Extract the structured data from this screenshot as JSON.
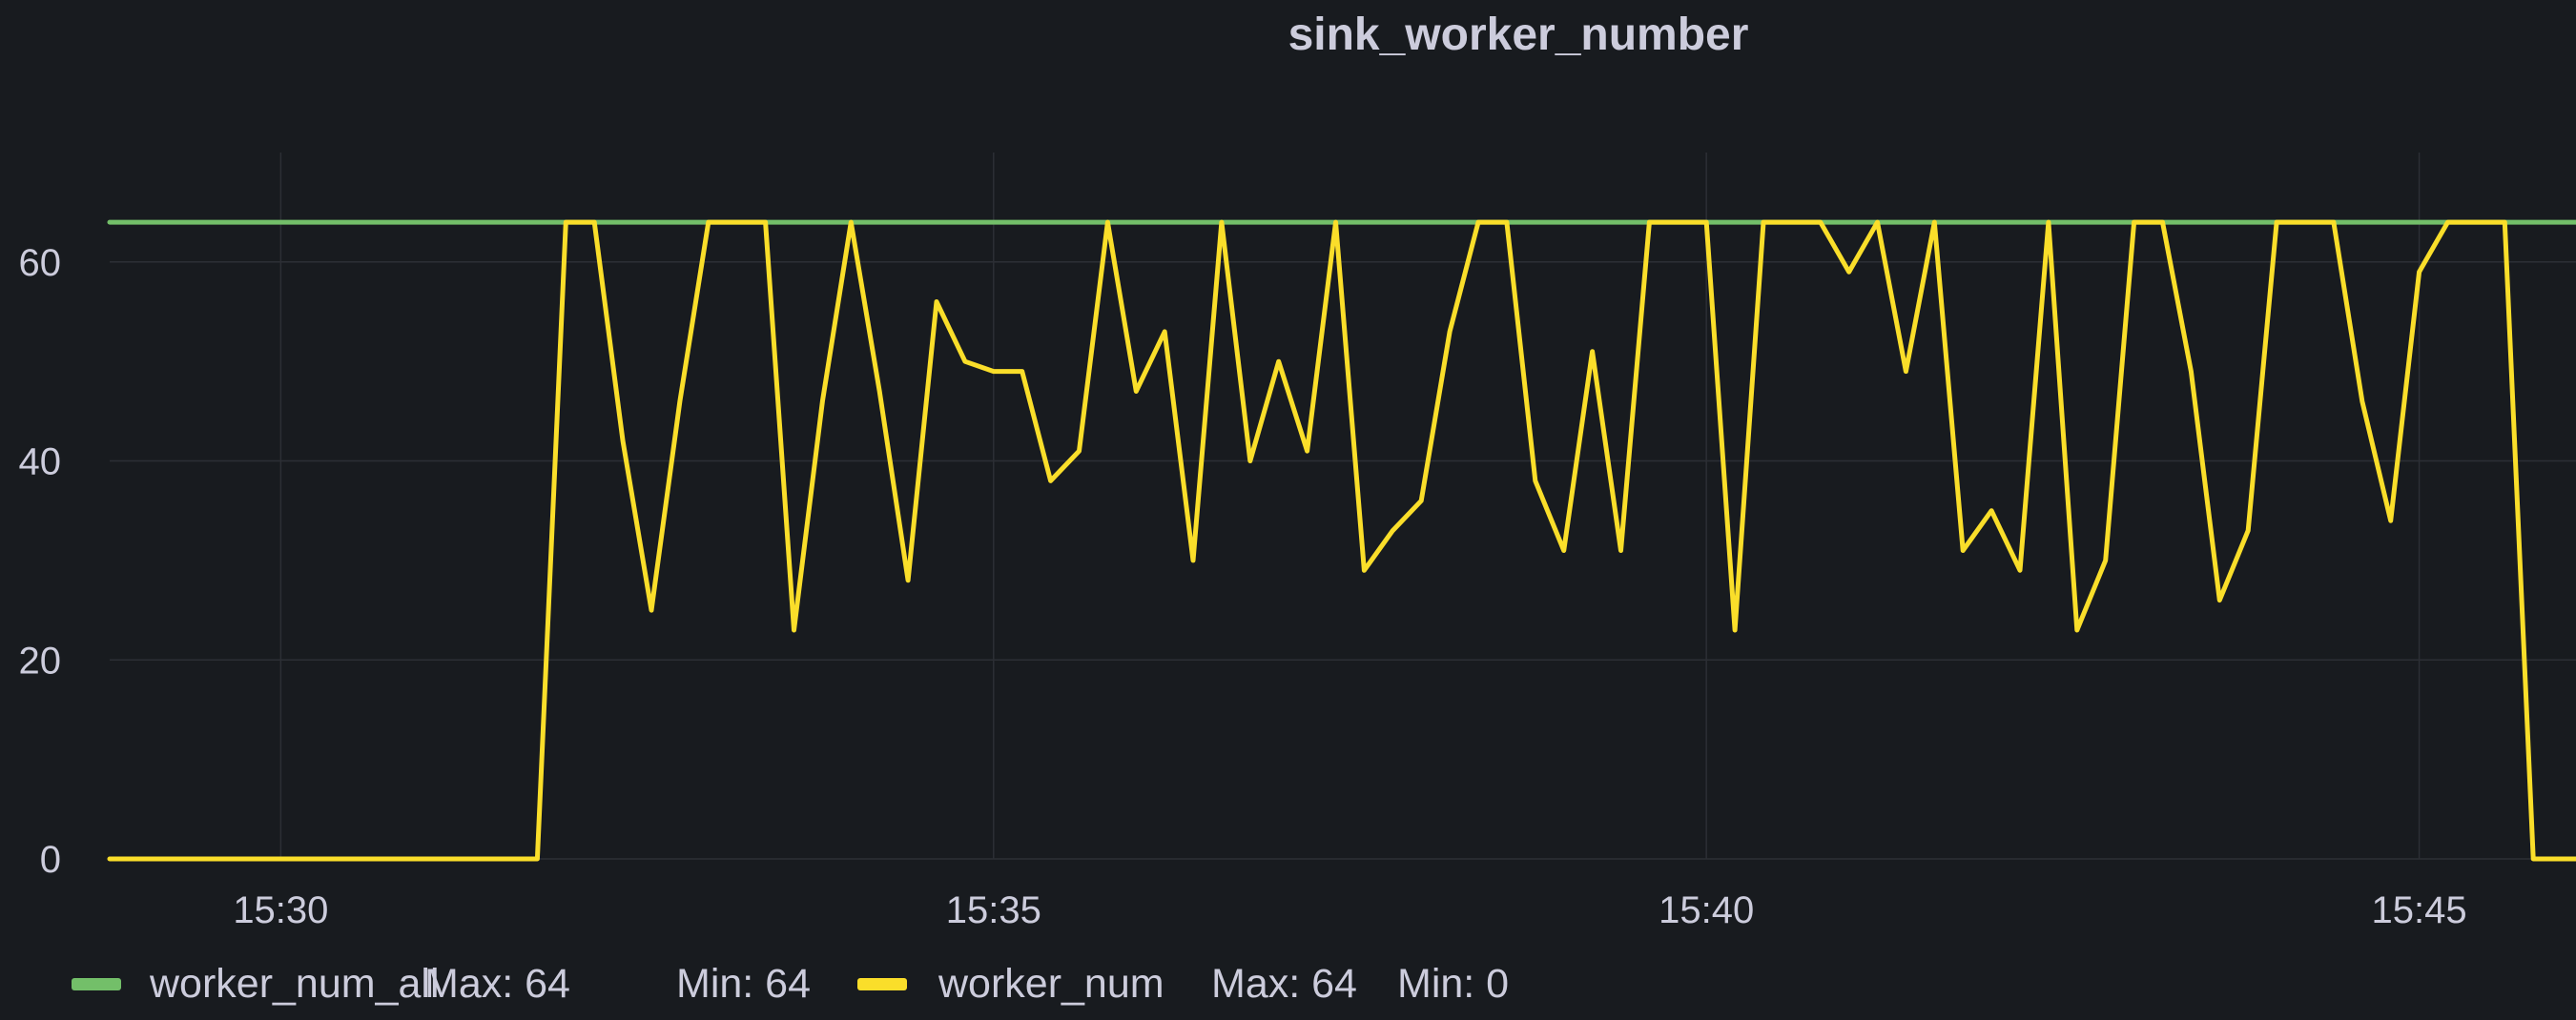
{
  "panel": {
    "title": "sink_worker_number"
  },
  "colors": {
    "background": "#181b1f",
    "grid": "#2c2f35",
    "text": "#ccccdc",
    "worker_num_all": "#73bf69",
    "worker_num": "#fade2a"
  },
  "legend": [
    {
      "name": "worker_num_all",
      "max_text": "Max: 64",
      "min_text": "Min: 64",
      "color": "#73bf69"
    },
    {
      "name": "worker_num",
      "max_text": "Max: 64",
      "min_text": "Min: 0",
      "color": "#fade2a"
    }
  ],
  "chart_data": {
    "type": "line",
    "title": "sink_worker_number",
    "xlabel": "",
    "ylabel": "",
    "x_unit": "minutes",
    "x_tick_labels": [
      "15:30",
      "15:35",
      "15:40",
      "15:45"
    ],
    "x_tick_values": [
      30,
      35,
      40,
      45
    ],
    "xlim": [
      28.8,
      46.1
    ],
    "y_tick_labels": [
      "0",
      "20",
      "40",
      "60"
    ],
    "y_tick_values": [
      0,
      20,
      40,
      60
    ],
    "ylim": [
      0,
      71
    ],
    "grid": true,
    "legend_position": "bottom-left",
    "series": [
      {
        "name": "worker_num_all",
        "color": "#73bf69",
        "x": [
          28.8,
          46.1
        ],
        "y": [
          64,
          64
        ]
      },
      {
        "name": "worker_num",
        "color": "#fade2a",
        "x": [
          28.8,
          31.8,
          32.0,
          32.2,
          32.4,
          32.6,
          32.8,
          33.0,
          33.2,
          33.4,
          33.6,
          33.8,
          34.0,
          34.2,
          34.4,
          34.6,
          34.8,
          35.0,
          35.2,
          35.4,
          35.6,
          35.8,
          36.0,
          36.2,
          36.4,
          36.6,
          36.8,
          37.0,
          37.2,
          37.4,
          37.6,
          37.8,
          38.0,
          38.2,
          38.4,
          38.6,
          38.8,
          39.0,
          39.2,
          39.4,
          39.6,
          39.8,
          40.0,
          40.2,
          40.4,
          40.6,
          40.8,
          41.0,
          41.2,
          41.4,
          41.6,
          41.8,
          42.0,
          42.2,
          42.4,
          42.6,
          42.8,
          43.0,
          43.2,
          43.4,
          43.6,
          43.8,
          44.0,
          44.2,
          44.4,
          44.6,
          44.8,
          45.0,
          45.2,
          45.4,
          45.6,
          45.8,
          46.1
        ],
        "y": [
          0,
          0,
          64,
          64,
          42,
          25,
          46,
          64,
          64,
          64,
          23,
          46,
          64,
          47,
          28,
          56,
          50,
          49,
          49,
          38,
          41,
          64,
          47,
          53,
          30,
          64,
          40,
          50,
          41,
          64,
          29,
          33,
          36,
          53,
          64,
          64,
          38,
          31,
          51,
          31,
          64,
          64,
          64,
          23,
          64,
          64,
          64,
          59,
          64,
          49,
          64,
          31,
          35,
          29,
          64,
          23,
          30,
          64,
          64,
          49,
          26,
          33,
          64,
          64,
          64,
          46,
          34,
          59,
          64,
          64,
          64,
          0,
          0
        ]
      }
    ]
  }
}
